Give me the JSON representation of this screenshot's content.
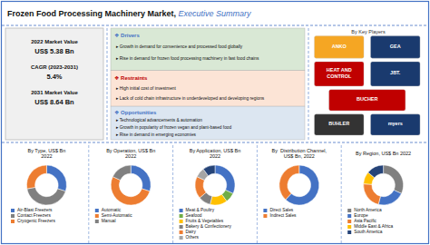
{
  "title": "Frozen Food Processing Machinery Market,",
  "subtitle": " Executive Summary",
  "annotations": [
    "2022 Market Value",
    "US$ 5.38 Bn",
    "CAGR (2023-2031)",
    "5.4%",
    "2031 Market Value",
    "US$ 8.64 Bn",
    "❖ Drivers",
    "▸ Growth in demand for convenience and processed food globally",
    "▸ Rise in demand for frozen food processing machinery in fast food chains",
    "❖ Restraints",
    "▸ High initial cost of investment",
    "▸ Lack of cold chain infrastructure in underdeveloped and developing regions",
    "❖ Opportunities",
    "▸ Technological advancements & automation",
    "▸ Growth in popularity of frozen vegan and plant-based food",
    "▸ Rise in demand in emerging economies",
    "By Key Players",
    "ANKO",
    "GEA",
    "HEAT AND\nCONTROL",
    "JBT.",
    "BUCHER",
    "BUHLER",
    "myers"
  ],
  "chart_data": [
    {
      "type": "donut",
      "title": "By Type, US$ Bn\n2022",
      "categories": [
        "Air-Blast Freezers",
        "Contact Freezers",
        "Cryogenic Freezers"
      ],
      "values": [
        30,
        42,
        28
      ],
      "colors": [
        "#4472c4",
        "#808080",
        "#ed7d31"
      ]
    },
    {
      "type": "donut",
      "title": "By Operation, US$ Bn\n2022",
      "categories": [
        "Automatic",
        "Semi-Automatic",
        "Manual"
      ],
      "values": [
        30,
        52,
        18
      ],
      "colors": [
        "#4472c4",
        "#ed7d31",
        "#808080"
      ]
    },
    {
      "type": "donut",
      "title": "By Application, US$ Bn\n2022",
      "categories": [
        "Meat & Poultry",
        "Seafood",
        "Fruits & Vegetables",
        "Bakery & Confectionery",
        "Dairy",
        "Others",
        null
      ],
      "values": [
        32,
        8,
        14,
        10,
        18,
        8,
        10
      ],
      "colors": [
        "#4472c4",
        "#70ad47",
        "#ffc000",
        "#808080",
        "#ed7d31",
        "#a5a5a5",
        "#264478"
      ]
    },
    {
      "type": "donut",
      "title": "By  Distribution Channel,\nUS$ Bn, 2022",
      "categories": [
        "Direct Sales",
        "Indirect Sales"
      ],
      "values": [
        62,
        38
      ],
      "colors": [
        "#4472c4",
        "#ed7d31"
      ]
    },
    {
      "type": "donut",
      "title": "By Region, US$ Bn 2022",
      "categories": [
        "North America",
        "Europe",
        "Asia Pacific",
        "Middle East & Africa",
        "South America"
      ],
      "values": [
        32,
        22,
        22,
        10,
        14
      ],
      "colors": [
        "#808080",
        "#4472c4",
        "#ed7d31",
        "#ffc000",
        "#264478"
      ]
    }
  ]
}
